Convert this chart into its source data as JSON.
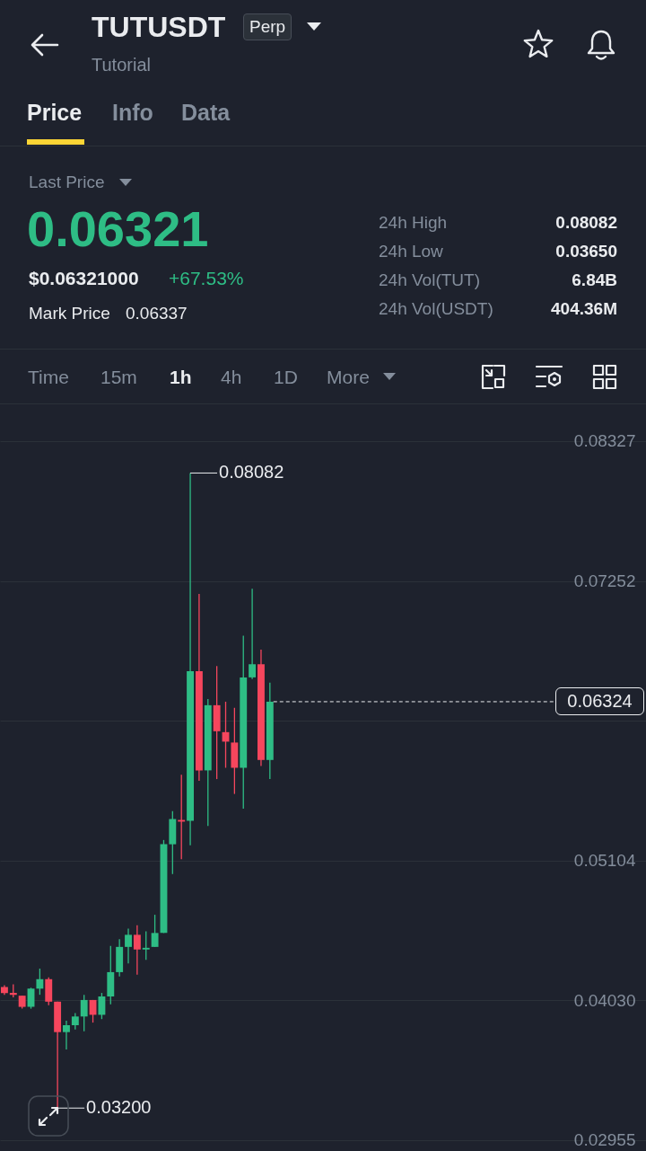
{
  "chart_data": {
    "type": "candlestick",
    "title": "TUTUSDT",
    "subtitle": "Tutorial",
    "annotations": [
      "Perp",
      "Price",
      "Info",
      "Data",
      "Last Price",
      "0.06321",
      "$0.06321000",
      "+67.53%",
      "Mark Price",
      "0.06337",
      "24h High",
      "0.08082",
      "24h Low",
      "0.03650",
      "24h Vol(TUT)",
      "6.84B",
      "24h Vol(USDT)",
      "404.36M",
      "Time",
      "15m",
      "1h",
      "4h",
      "1D",
      "More",
      "0.08082",
      "0.03200"
    ],
    "categories": [
      null,
      null,
      null,
      null,
      null,
      null,
      null,
      null,
      null,
      null,
      null,
      null,
      null,
      null,
      null,
      null,
      null,
      null,
      null,
      null,
      null,
      null,
      null,
      null,
      null,
      null,
      null,
      null,
      null,
      null,
      null,
      null,
      null,
      null,
      null,
      null,
      null,
      null,
      null,
      null,
      null,
      null,
      null,
      null,
      null,
      null,
      null,
      null,
      null,
      null,
      null,
      null,
      null,
      null,
      null,
      null,
      null,
      null,
      null,
      null,
      null,
      null,
      null,
      null,
      null,
      null,
      null,
      null,
      null,
      null,
      null,
      null,
      null
    ],
    "ohlc": [
      [
        0.04131,
        0.04145,
        0.04071,
        0.04084
      ],
      [
        0.04085,
        0.04151,
        0.04051,
        0.04071
      ],
      [
        0.04064,
        0.04064,
        0.03964,
        0.03978
      ],
      [
        0.03978,
        0.04125,
        0.03964,
        0.04118
      ],
      [
        0.04118,
        0.04272,
        0.04071,
        0.04191
      ],
      [
        0.04191,
        0.04205,
        0.03991,
        0.04018
      ],
      [
        0.04018,
        0.04018,
        0.032,
        0.03784
      ],
      [
        0.03784,
        0.03871,
        0.0365,
        0.03837
      ],
      [
        0.03837,
        0.03931,
        0.03804,
        0.03904
      ],
      [
        0.03904,
        0.04071,
        0.0379,
        0.04031
      ],
      [
        0.04031,
        0.04031,
        0.03857,
        0.03917
      ],
      [
        0.03917,
        0.04085,
        0.03884,
        0.04058
      ],
      [
        0.04058,
        0.04446,
        0.03998,
        0.04245
      ],
      [
        0.04245,
        0.04499,
        0.04212,
        0.04439
      ],
      [
        0.04439,
        0.04579,
        0.04312,
        0.04532
      ],
      [
        0.04532,
        0.04606,
        0.04225,
        0.04419
      ],
      [
        0.04419,
        0.04559,
        0.04339,
        0.04432
      ],
      [
        0.04439,
        0.04686,
        0.04439,
        0.04546
      ],
      [
        0.04546,
        0.05261,
        0.04546,
        0.05228
      ],
      [
        0.05228,
        0.05482,
        0.05,
        0.05422
      ],
      [
        0.05415,
        0.05763,
        0.05114,
        0.05402
      ],
      [
        0.05408,
        0.08082,
        0.05221,
        0.06558
      ],
      [
        0.06558,
        0.07153,
        0.05716,
        0.05796
      ],
      [
        0.05796,
        0.06344,
        0.05368,
        0.06297
      ],
      [
        0.06297,
        0.06598,
        0.05729,
        0.06097
      ],
      [
        0.0609,
        0.06324,
        0.05816,
        0.06017
      ],
      [
        0.0601,
        0.06277,
        0.05615,
        0.05816
      ],
      [
        0.05816,
        0.06832,
        0.05502,
        0.06511
      ],
      [
        0.06511,
        0.07193,
        0.06498,
        0.06612
      ],
      [
        0.06612,
        0.06725,
        0.05829,
        0.05876
      ],
      [
        0.05876,
        0.06471,
        0.05729,
        0.06324
      ],
      null,
      null,
      null,
      null,
      null,
      null,
      null,
      null,
      null,
      null,
      null,
      null,
      null,
      null,
      null,
      null,
      null,
      null,
      null,
      null,
      null,
      null,
      null,
      null,
      null,
      null,
      null,
      null,
      null,
      null,
      null,
      null,
      null,
      null,
      null,
      null,
      null,
      null,
      null,
      null,
      null,
      null
    ],
    "colors": [
      "#f6465d",
      "#f6465d",
      "#f6465d",
      "#2ebd85",
      "#2ebd85",
      "#f6465d",
      "#f6465d",
      "#2ebd85",
      "#2ebd85",
      "#2ebd85",
      "#f6465d",
      "#2ebd85",
      "#2ebd85",
      "#2ebd85",
      "#2ebd85",
      "#f6465d",
      "#2ebd85",
      "#2ebd85",
      "#2ebd85",
      "#2ebd85",
      "#f6465d",
      "#2ebd85",
      "#f6465d",
      "#2ebd85",
      "#f6465d",
      "#f6465d",
      "#f6465d",
      "#2ebd85",
      "#2ebd85",
      "#f6465d",
      "#2ebd85",
      null,
      null,
      null,
      null,
      null,
      null,
      null,
      null,
      null,
      null,
      null,
      null,
      null,
      null,
      null,
      null,
      null,
      null,
      null,
      null,
      null,
      null,
      null,
      null,
      null,
      null,
      null,
      null,
      null,
      null,
      null,
      null,
      null,
      null,
      null,
      null,
      null,
      null,
      null,
      null,
      null,
      null
    ],
    "ylim": [
      0.0287,
      0.0861
    ],
    "yticks": [
      0.08327,
      0.07252,
      {
        "value": 0.06178,
        "label": null
      },
      0.05104,
      {
        "value": 0.0403,
        "label": "0.04030"
      },
      0.02955
    ],
    "grid": "y",
    "tick_labels": "y",
    "ref_lines": [
      {
        "axis": "y",
        "value": 0.06324,
        "label": "0.06324",
        "line_style": "dashed",
        "color": "#eaecef"
      }
    ]
  }
}
